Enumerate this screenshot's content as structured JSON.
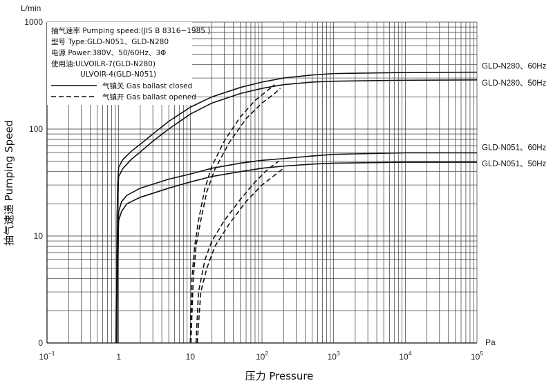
{
  "chart_data": {
    "type": "line",
    "title": "",
    "xlabel": "压力 Pressure",
    "ylabel": "抽气速递 Pumping Speed",
    "x_unit": "Pa",
    "y_unit": "L/min",
    "x_scale": "log",
    "y_scale": "log",
    "xlim": [
      0.1,
      100000
    ],
    "ylim": [
      1,
      1000
    ],
    "grid": true,
    "x_ticks": [
      {
        "value": 0.1,
        "base": "10",
        "exp": "−1"
      },
      {
        "value": 1,
        "base": "1",
        "exp": ""
      },
      {
        "value": 10,
        "base": "10",
        "exp": ""
      },
      {
        "value": 100,
        "base": "10",
        "exp": "2"
      },
      {
        "value": 1000,
        "base": "10",
        "exp": "3"
      },
      {
        "value": 10000,
        "base": "10",
        "exp": "4"
      },
      {
        "value": 100000,
        "base": "10",
        "exp": "5"
      }
    ],
    "y_ticks": [
      {
        "value": 1,
        "label": "0"
      },
      {
        "value": 10,
        "label": "10"
      },
      {
        "value": 100,
        "label": "100"
      },
      {
        "value": 1000,
        "label": "1000"
      }
    ],
    "legend": {
      "placement": "top-left",
      "lines": [
        "抽气速率 Pumping speed:(JIS B 8316−1985 )",
        "型号 Type:GLD-N051、GLD-N280",
        "电源 Power:380V、50/60Hz、3Φ",
        "使用油:ULVOILR-7(GLD-N280)",
        "ULVOIR-4(GLD-N051)"
      ],
      "closed_label": "气镇关 Gas ballast closed",
      "opened_label": "气镇开 Gas ballast opened"
    },
    "series": [
      {
        "name": "GLD-N280、60Hz",
        "style": "solid",
        "points": [
          [
            0.93,
            1
          ],
          [
            0.95,
            15
          ],
          [
            0.97,
            30
          ],
          [
            1.0,
            44
          ],
          [
            1.15,
            52
          ],
          [
            1.5,
            62
          ],
          [
            2,
            72
          ],
          [
            3,
            90
          ],
          [
            5,
            118
          ],
          [
            10,
            160
          ],
          [
            20,
            200
          ],
          [
            50,
            245
          ],
          [
            100,
            275
          ],
          [
            200,
            300
          ],
          [
            500,
            320
          ],
          [
            1000,
            330
          ],
          [
            10000,
            338
          ],
          [
            100000,
            340
          ]
        ]
      },
      {
        "name": "GLD-N280、50Hz",
        "style": "solid",
        "points": [
          [
            0.93,
            1
          ],
          [
            0.95,
            13
          ],
          [
            0.97,
            25
          ],
          [
            1.0,
            36
          ],
          [
            1.15,
            43
          ],
          [
            1.5,
            52
          ],
          [
            2,
            61
          ],
          [
            3,
            77
          ],
          [
            5,
            100
          ],
          [
            10,
            138
          ],
          [
            20,
            175
          ],
          [
            50,
            215
          ],
          [
            100,
            240
          ],
          [
            200,
            260
          ],
          [
            500,
            275
          ],
          [
            1000,
            280
          ],
          [
            10000,
            286
          ],
          [
            100000,
            288
          ]
        ]
      },
      {
        "name": "GLD-N051、60Hz",
        "style": "solid",
        "points": [
          [
            0.95,
            1
          ],
          [
            0.97,
            8
          ],
          [
            1.0,
            17
          ],
          [
            1.1,
            21
          ],
          [
            1.3,
            24
          ],
          [
            2,
            28
          ],
          [
            5,
            34
          ],
          [
            10,
            38
          ],
          [
            20,
            43
          ],
          [
            50,
            48
          ],
          [
            100,
            51
          ],
          [
            200,
            53
          ],
          [
            500,
            56
          ],
          [
            1000,
            58
          ],
          [
            10000,
            60
          ],
          [
            100000,
            60
          ]
        ]
      },
      {
        "name": "GLD-N051、50Hz",
        "style": "solid",
        "points": [
          [
            0.95,
            1
          ],
          [
            0.97,
            7
          ],
          [
            1.0,
            14
          ],
          [
            1.1,
            17
          ],
          [
            1.3,
            20
          ],
          [
            2,
            23
          ],
          [
            5,
            28
          ],
          [
            10,
            32
          ],
          [
            20,
            36
          ],
          [
            50,
            40
          ],
          [
            100,
            43
          ],
          [
            200,
            45
          ],
          [
            500,
            47
          ],
          [
            1000,
            48
          ],
          [
            10000,
            49
          ],
          [
            100000,
            49
          ]
        ]
      },
      {
        "name": "",
        "style": "dashed",
        "points": [
          [
            10,
            1
          ],
          [
            10.5,
            4
          ],
          [
            11.5,
            8
          ],
          [
            13,
            14
          ],
          [
            16,
            28
          ],
          [
            20,
            45
          ],
          [
            30,
            78
          ],
          [
            50,
            130
          ],
          [
            80,
            185
          ],
          [
            120,
            230
          ],
          [
            150,
            260
          ]
        ]
      },
      {
        "name": "",
        "style": "dashed",
        "points": [
          [
            10.2,
            1
          ],
          [
            11,
            4
          ],
          [
            12,
            8
          ],
          [
            14,
            14
          ],
          [
            17,
            26
          ],
          [
            22,
            42
          ],
          [
            35,
            75
          ],
          [
            60,
            125
          ],
          [
            100,
            175
          ],
          [
            150,
            215
          ],
          [
            180,
            240
          ]
        ]
      },
      {
        "name": "",
        "style": "dashed",
        "points": [
          [
            12,
            1
          ],
          [
            13,
            3
          ],
          [
            16,
            6
          ],
          [
            20,
            9
          ],
          [
            30,
            14
          ],
          [
            50,
            22
          ],
          [
            80,
            32
          ],
          [
            120,
            42
          ],
          [
            170,
            50
          ]
        ]
      },
      {
        "name": "",
        "style": "dashed",
        "points": [
          [
            12.5,
            1
          ],
          [
            14,
            3
          ],
          [
            17,
            5
          ],
          [
            22,
            8
          ],
          [
            35,
            13
          ],
          [
            60,
            21
          ],
          [
            100,
            30
          ],
          [
            150,
            37
          ],
          [
            200,
            43
          ]
        ]
      }
    ]
  }
}
